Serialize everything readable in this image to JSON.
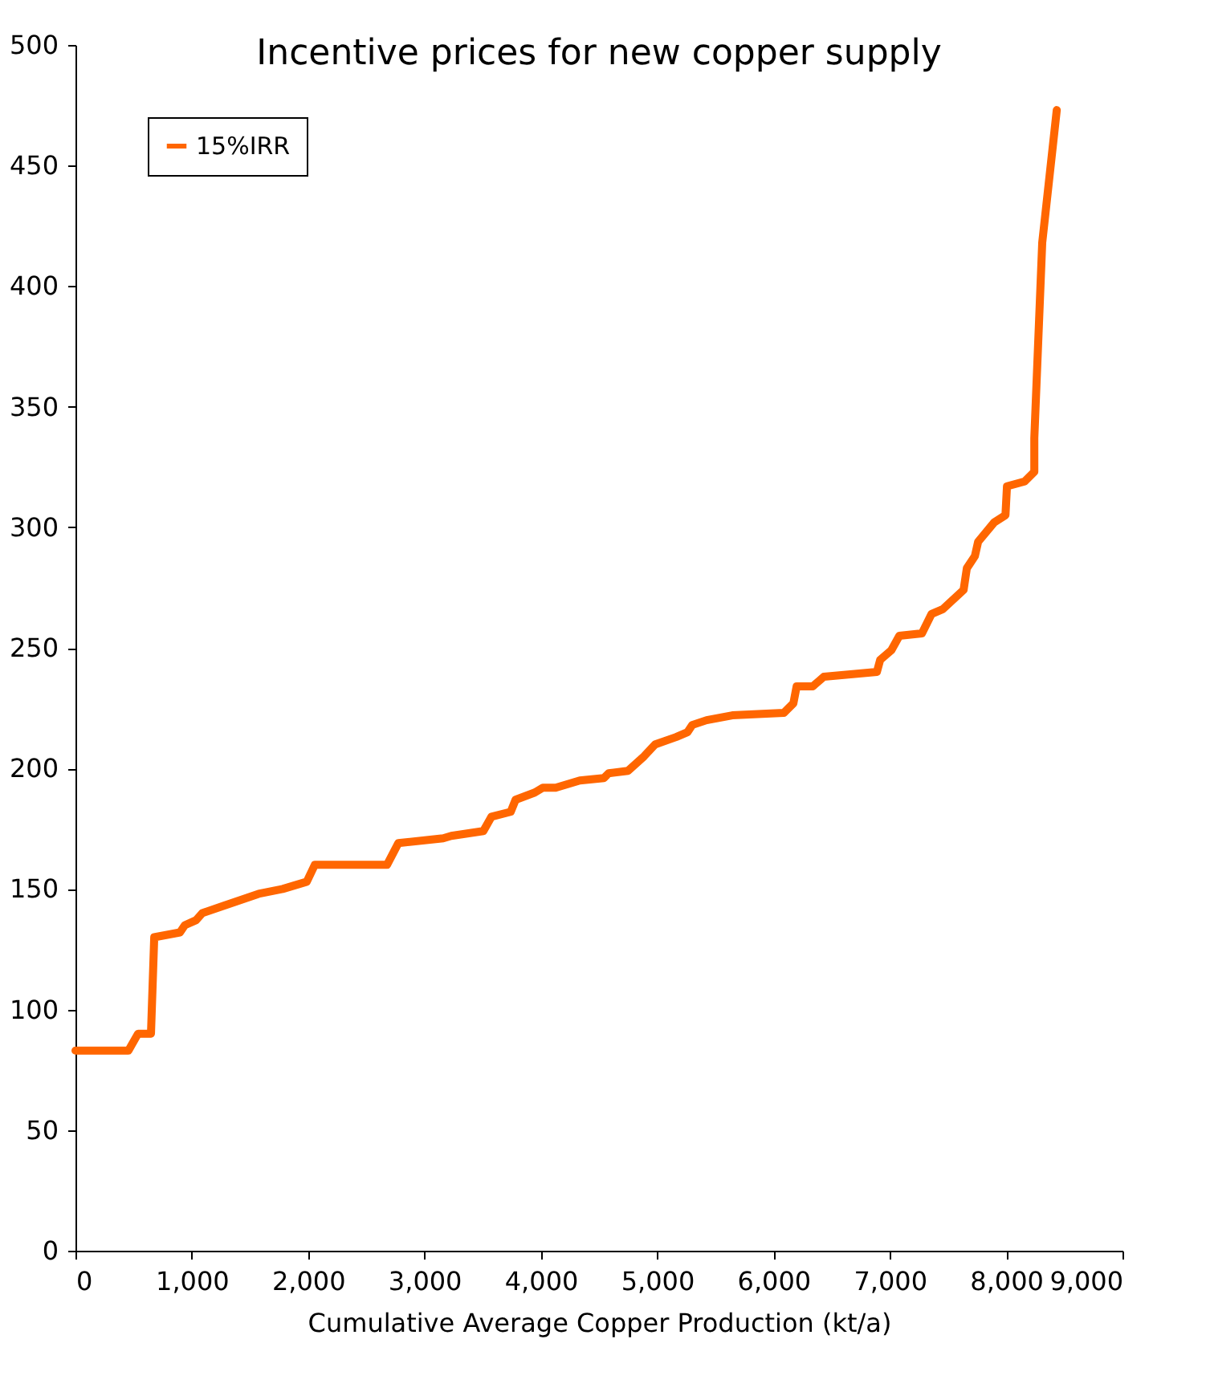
{
  "chart_data": {
    "type": "line",
    "title": "Incentive prices for new copper supply",
    "xlabel": "Cumulative Average Copper Production (kt/a)",
    "xlim": [
      0,
      9000
    ],
    "xticks": [
      {
        "value": 0,
        "label": "0"
      },
      {
        "value": 1000,
        "label": "1,000"
      },
      {
        "value": 2000,
        "label": "2,000"
      },
      {
        "value": 3000,
        "label": "3,000"
      },
      {
        "value": 4000,
        "label": "4,000"
      },
      {
        "value": 5000,
        "label": "5,000"
      },
      {
        "value": 6000,
        "label": "6,000"
      },
      {
        "value": 7000,
        "label": "7,000"
      },
      {
        "value": 8000,
        "label": "8,000"
      },
      {
        "value": 9000,
        "label": "9,000"
      }
    ],
    "ylim": [
      0,
      500
    ],
    "yticks": [
      0,
      50,
      100,
      150,
      200,
      250,
      300,
      350,
      400,
      450,
      500
    ],
    "grid": false,
    "legend": "top left",
    "marker": "none",
    "line_style": "solid",
    "series": [
      {
        "name": "15%IRR",
        "color": "#ff6600",
        "x": [
          0,
          455,
          538,
          649,
          677,
          898,
          940,
          1035,
          1090,
          1270,
          1574,
          1781,
          1988,
          2057,
          2678,
          2775,
          3161,
          3230,
          3506,
          3576,
          3741,
          3783,
          3948,
          4017,
          4128,
          4335,
          4542,
          4583,
          4749,
          4887,
          4984,
          5163,
          5260,
          5301,
          5425,
          5646,
          6088,
          6171,
          6199,
          6337,
          6433,
          6889,
          6917,
          7013,
          7082,
          7276,
          7358,
          7455,
          7634,
          7662,
          7731,
          7759,
          7897,
          7994,
          8007,
          8159,
          8242,
          8242,
          8310,
          8435
        ],
        "values": [
          83,
          83,
          90,
          90,
          130,
          132,
          135,
          137,
          140,
          143,
          148,
          150,
          153,
          160,
          160,
          169,
          171,
          172,
          174,
          180,
          182,
          187,
          190,
          192,
          192,
          195,
          196,
          198,
          199,
          205,
          210,
          213,
          215,
          218,
          220,
          222,
          223,
          227,
          234,
          234,
          238,
          240,
          245,
          249,
          255,
          256,
          264,
          266,
          274,
          283,
          288,
          294,
          302,
          305,
          317,
          319,
          323,
          337,
          418,
          473
        ]
      }
    ]
  }
}
